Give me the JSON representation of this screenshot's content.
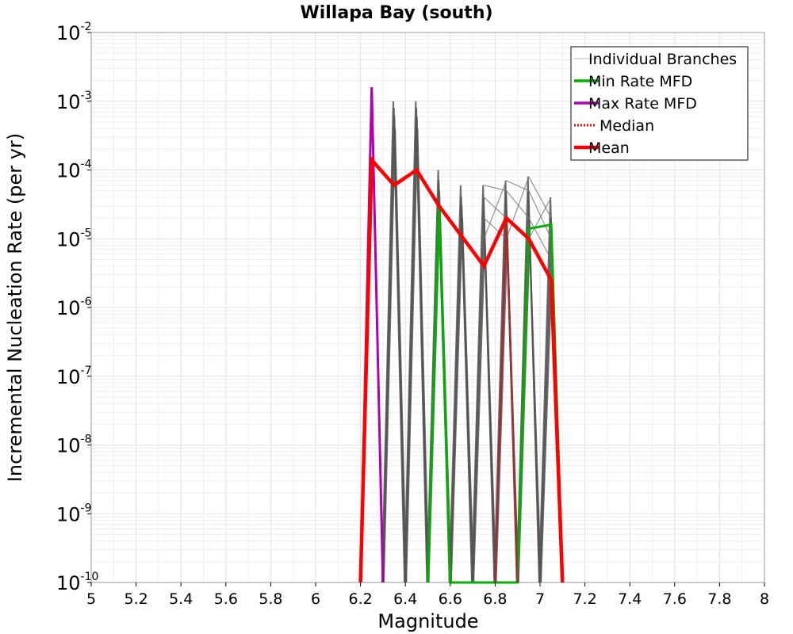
{
  "chart_data": {
    "type": "line",
    "title": "Willapa Bay (south)",
    "xlabel": "Magnitude",
    "ylabel": "Incremental Nucleation Rate (per yr)",
    "xlim": [
      5,
      8
    ],
    "ylim": [
      1e-10,
      0.01
    ],
    "yscale": "log",
    "grid": true,
    "legend_position": "top-right",
    "x_ticks": [
      "5",
      "5.2",
      "5.4",
      "5.6",
      "5.8",
      "6",
      "6.2",
      "6.4",
      "6.6",
      "6.8",
      "7",
      "7.2",
      "7.4",
      "7.6",
      "7.8",
      "8"
    ],
    "y_ticks": [
      {
        "base": "10",
        "exp": "-10"
      },
      {
        "base": "10",
        "exp": "-9"
      },
      {
        "base": "10",
        "exp": "-8"
      },
      {
        "base": "10",
        "exp": "-7"
      },
      {
        "base": "10",
        "exp": "-6"
      },
      {
        "base": "10",
        "exp": "-5"
      },
      {
        "base": "10",
        "exp": "-4"
      },
      {
        "base": "10",
        "exp": "-3"
      },
      {
        "base": "10",
        "exp": "-2"
      }
    ],
    "legend": [
      {
        "label": "Individual Branches",
        "color": "#bdbdbd",
        "style": "thin"
      },
      {
        "label": "Min Rate MFD",
        "color": "#00b000",
        "style": "solid"
      },
      {
        "label": "Max Rate MFD",
        "color": "#b000b0",
        "style": "solid"
      },
      {
        "label": "Median",
        "color": "#ff0000",
        "style": "dotted"
      },
      {
        "label": "Mean",
        "color": "#ff0000",
        "style": "thick"
      }
    ],
    "series": [
      {
        "name": "Individual Branches",
        "color": "#555555",
        "note_values": "representative spike peaks at each magnitude bin",
        "peaks": [
          {
            "x": 6.35,
            "y": [
              0.001,
              0.0008,
              0.0006,
              0.0004
            ]
          },
          {
            "x": 6.45,
            "y": [
              0.001,
              0.0008,
              0.0006,
              0.0004
            ]
          },
          {
            "x": 6.55,
            "y": [
              0.0001,
              7e-05,
              5e-05,
              3e-05
            ]
          },
          {
            "x": 6.65,
            "y": [
              6e-05,
              4e-05,
              3e-05,
              2e-05
            ]
          },
          {
            "x": 6.75,
            "y": [
              6e-05,
              4e-05,
              2e-05,
              1e-05
            ]
          },
          {
            "x": 6.85,
            "y": [
              7e-05,
              5e-05,
              2e-05,
              1e-05
            ]
          },
          {
            "x": 6.95,
            "y": [
              8e-05,
              5e-05,
              2e-05,
              1e-05
            ]
          },
          {
            "x": 7.05,
            "y": [
              4e-05,
              2e-05,
              1e-05,
              5e-06
            ]
          }
        ]
      },
      {
        "name": "Min Rate MFD",
        "color": "#00b000",
        "x": [
          6.5,
          6.55,
          6.6,
          6.9,
          6.95,
          7.05,
          7.1
        ],
        "y": [
          1e-10,
          3e-05,
          1e-10,
          1e-10,
          1.4e-05,
          1.6e-05,
          1e-10
        ]
      },
      {
        "name": "Max Rate MFD",
        "color": "#b000b0",
        "x": [
          6.2,
          6.25,
          6.3
        ],
        "y": [
          1e-10,
          0.0016,
          1e-10
        ]
      },
      {
        "name": "Median",
        "color": "#a03030",
        "x": [
          6.8,
          6.85,
          6.9
        ],
        "y": [
          1e-10,
          2e-05,
          1e-10
        ]
      },
      {
        "name": "Mean",
        "color": "#ff0000",
        "x": [
          6.2,
          6.25,
          6.35,
          6.45,
          6.55,
          6.75,
          6.85,
          6.95,
          7.05,
          7.1
        ],
        "y": [
          1e-10,
          0.00014,
          6e-05,
          0.0001,
          3e-05,
          4e-06,
          2e-05,
          1e-05,
          2.5e-06,
          1e-10
        ]
      }
    ]
  }
}
